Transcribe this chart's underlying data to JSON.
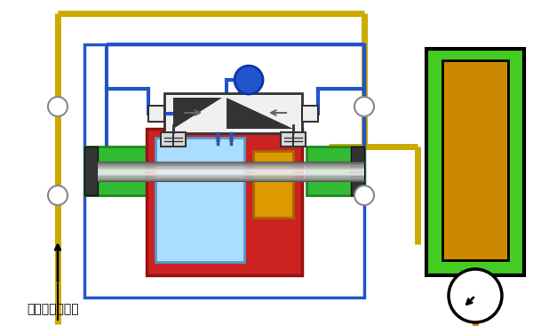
{
  "bg_color": "#ffffff",
  "label_text": "需增压气体入口",
  "label_fontsize": 10,
  "blue_color": "#2255cc",
  "yellow_color": "#ccaa00",
  "orange_color": "#cc8800",
  "green_color": "#44cc22",
  "red_color": "#cc2222",
  "gray_color": "#888888",
  "dark_color": "#222222",
  "light_blue": "#88bbee",
  "silver": "#bbbbbb"
}
